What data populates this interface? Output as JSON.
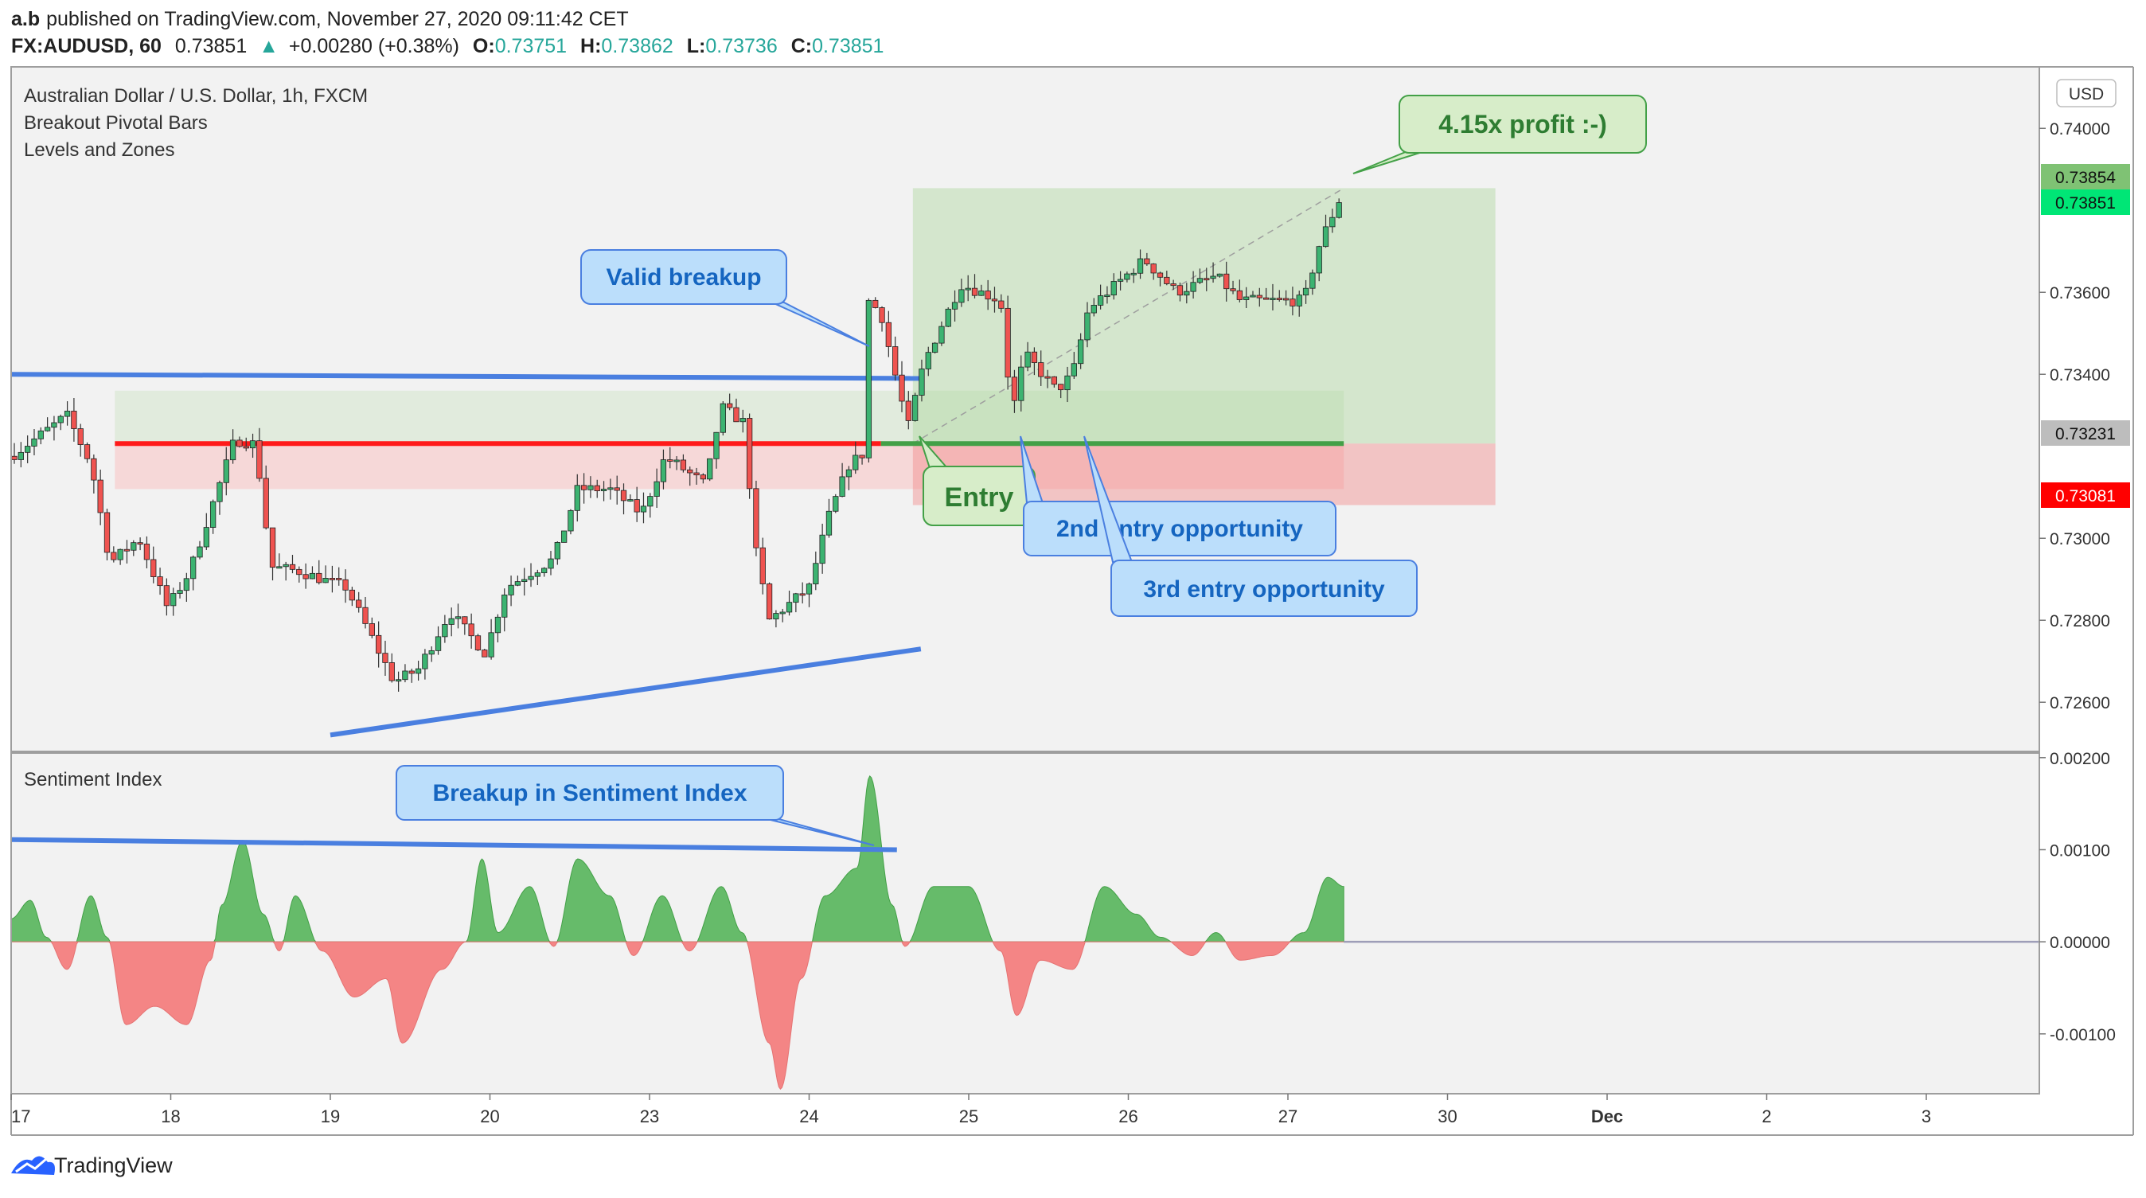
{
  "header": {
    "author": "a.b",
    "published": "published on TradingView.com, November 27, 2020 09:11:42 CET",
    "symbol": "FX:AUDUSD, 60",
    "last": "0.73851",
    "change": "+0.00280 (+0.38%)",
    "o_label": "O:",
    "o": "0.73751",
    "h_label": "H:",
    "h": "0.73862",
    "l_label": "L:",
    "l": "0.73736",
    "c_label": "C:",
    "c": "0.73851"
  },
  "legend": {
    "title": "Australian Dollar / U.S. Dollar, 1h, FXCM",
    "ind1": "Breakout Pivotal Bars",
    "ind2": "Levels and Zones",
    "sentiment": "Sentiment Index"
  },
  "currency": "USD",
  "brand": "TradingView",
  "annotations": {
    "valid_breakup": "Valid breakup",
    "profit": "4.15x profit :-)",
    "entry": "Entry",
    "entry2": "2nd entry opportunity",
    "entry3": "3rd entry opportunity",
    "sentiment_breakup": "Breakup in Sentiment Index"
  },
  "price_badges": {
    "target": "0.73854",
    "last": "0.73851",
    "entry": "0.73231",
    "stop": "0.73081"
  },
  "colors": {
    "up": "#26a69a",
    "up_body": "#3cb371",
    "down": "#ef5350",
    "trendline": "#4a7fe0",
    "level_red": "#ff1a1a",
    "level_green": "#43a047",
    "blue_callout": "#bbdefb",
    "green_callout": "#d7edc9",
    "sent_pos": "#66bb6a",
    "sent_neg": "#f48585"
  },
  "chart_data": [
    {
      "type": "candlestick",
      "title": "Australian Dollar / U.S. Dollar, 1h, FXCM",
      "x_tick_labels": [
        "17",
        "18",
        "19",
        "20",
        "23",
        "24",
        "25",
        "26",
        "27",
        "30",
        "Dec",
        "2",
        "3"
      ],
      "y_tick_labels": [
        "0.74000",
        "0.73600",
        "0.73400",
        "0.73000",
        "0.72800",
        "0.72600"
      ],
      "ylim": [
        0.7248,
        0.7415
      ],
      "close_path": [
        {
          "t": 0.0,
          "p": 0.732
        },
        {
          "t": 0.35,
          "p": 0.733
        },
        {
          "t": 0.5,
          "p": 0.7318
        },
        {
          "t": 0.62,
          "p": 0.7294
        },
        {
          "t": 0.8,
          "p": 0.73
        },
        {
          "t": 0.98,
          "p": 0.7283
        },
        {
          "t": 1.12,
          "p": 0.7292
        },
        {
          "t": 1.4,
          "p": 0.7324
        },
        {
          "t": 1.53,
          "p": 0.7323
        },
        {
          "t": 1.63,
          "p": 0.7293
        },
        {
          "t": 1.8,
          "p": 0.7292
        },
        {
          "t": 2.1,
          "p": 0.7288
        },
        {
          "t": 2.4,
          "p": 0.7265
        },
        {
          "t": 2.55,
          "p": 0.7268
        },
        {
          "t": 2.75,
          "p": 0.7282
        },
        {
          "t": 2.97,
          "p": 0.7272
        },
        {
          "t": 3.1,
          "p": 0.7288
        },
        {
          "t": 3.4,
          "p": 0.7295
        },
        {
          "t": 3.55,
          "p": 0.7312
        },
        {
          "t": 3.75,
          "p": 0.7312
        },
        {
          "t": 3.95,
          "p": 0.7306
        },
        {
          "t": 4.1,
          "p": 0.732
        },
        {
          "t": 4.35,
          "p": 0.7313
        },
        {
          "t": 4.45,
          "p": 0.7332
        },
        {
          "t": 4.6,
          "p": 0.7328
        },
        {
          "t": 4.65,
          "p": 0.73
        },
        {
          "t": 4.75,
          "p": 0.728
        },
        {
          "t": 5.0,
          "p": 0.7288
        },
        {
          "t": 5.12,
          "p": 0.7305
        },
        {
          "t": 5.25,
          "p": 0.7318
        },
        {
          "t": 5.35,
          "p": 0.7321
        },
        {
          "t": 5.37,
          "p": 0.7358
        },
        {
          "t": 5.45,
          "p": 0.7355
        },
        {
          "t": 5.55,
          "p": 0.7338
        },
        {
          "t": 5.62,
          "p": 0.7327
        },
        {
          "t": 5.72,
          "p": 0.7343
        },
        {
          "t": 5.95,
          "p": 0.7362
        },
        {
          "t": 6.2,
          "p": 0.7358
        },
        {
          "t": 6.27,
          "p": 0.733
        },
        {
          "t": 6.35,
          "p": 0.7345
        },
        {
          "t": 6.55,
          "p": 0.7336
        },
        {
          "t": 6.65,
          "p": 0.734
        },
        {
          "t": 6.75,
          "p": 0.7356
        },
        {
          "t": 7.1,
          "p": 0.7368
        },
        {
          "t": 7.3,
          "p": 0.736
        },
        {
          "t": 7.55,
          "p": 0.7364
        },
        {
          "t": 7.7,
          "p": 0.7358
        },
        {
          "t": 7.95,
          "p": 0.7358
        },
        {
          "t": 8.1,
          "p": 0.7358
        },
        {
          "t": 8.2,
          "p": 0.7372
        },
        {
          "t": 8.35,
          "p": 0.7385
        }
      ],
      "lines": [
        {
          "name": "upper-trendline",
          "points": [
            [
              0.0,
              0.734
            ],
            [
              5.7,
              0.7339
            ]
          ]
        },
        {
          "name": "lower-trendline",
          "points": [
            [
              2.0,
              0.7252
            ],
            [
              5.7,
              0.7273
            ]
          ]
        },
        {
          "name": "resistance-level",
          "from": 0.65,
          "to": 5.45,
          "price": 0.73231
        },
        {
          "name": "entry-level",
          "from": 5.45,
          "to": 8.35,
          "price": 0.73231
        }
      ],
      "zones": [
        {
          "name": "demand-zone",
          "from": 0.65,
          "to": 8.35,
          "top": 0.7336,
          "bottom": 0.73231
        },
        {
          "name": "supply-zone",
          "from": 0.65,
          "to": 8.35,
          "top": 0.73231,
          "bottom": 0.7312
        }
      ],
      "position": {
        "entry": 0.73231,
        "target": 0.73854,
        "stop": 0.73081,
        "from": 5.65,
        "to": 9.3
      }
    },
    {
      "type": "area",
      "title": "Sentiment Index",
      "y_tick_labels": [
        "0.00200",
        "0.00100",
        "0.00000",
        "-0.00100"
      ],
      "ylim": [
        -0.00165,
        0.00205
      ],
      "values": [
        {
          "t": 0.0,
          "v": 0.00025
        },
        {
          "t": 0.12,
          "v": 0.00045
        },
        {
          "t": 0.22,
          "v": 5e-05
        },
        {
          "t": 0.35,
          "v": -0.0003
        },
        {
          "t": 0.5,
          "v": 0.0005
        },
        {
          "t": 0.6,
          "v": 5e-05
        },
        {
          "t": 0.72,
          "v": -0.0009
        },
        {
          "t": 0.9,
          "v": -0.0007
        },
        {
          "t": 1.1,
          "v": -0.0009
        },
        {
          "t": 1.25,
          "v": -0.0002
        },
        {
          "t": 1.32,
          "v": 0.0004
        },
        {
          "t": 1.45,
          "v": 0.0011
        },
        {
          "t": 1.58,
          "v": 0.0003
        },
        {
          "t": 1.68,
          "v": -0.0001
        },
        {
          "t": 1.78,
          "v": 0.0005
        },
        {
          "t": 1.95,
          "v": -0.0001
        },
        {
          "t": 2.15,
          "v": -0.0006
        },
        {
          "t": 2.35,
          "v": -0.0004
        },
        {
          "t": 2.45,
          "v": -0.0011
        },
        {
          "t": 2.7,
          "v": -0.0003
        },
        {
          "t": 2.85,
          "v": 0.0
        },
        {
          "t": 2.95,
          "v": 0.0009
        },
        {
          "t": 3.05,
          "v": 0.0001
        },
        {
          "t": 3.25,
          "v": 0.0006
        },
        {
          "t": 3.4,
          "v": -5e-05
        },
        {
          "t": 3.55,
          "v": 0.0009
        },
        {
          "t": 3.75,
          "v": 0.0005
        },
        {
          "t": 3.9,
          "v": -0.00015
        },
        {
          "t": 4.08,
          "v": 0.0005
        },
        {
          "t": 4.25,
          "v": -0.0001
        },
        {
          "t": 4.45,
          "v": 0.0006
        },
        {
          "t": 4.58,
          "v": 0.0001
        },
        {
          "t": 4.75,
          "v": -0.0011
        },
        {
          "t": 4.82,
          "v": -0.0016
        },
        {
          "t": 4.95,
          "v": -0.0004
        },
        {
          "t": 5.1,
          "v": 0.0005
        },
        {
          "t": 5.3,
          "v": 0.0008
        },
        {
          "t": 5.38,
          "v": 0.0018
        },
        {
          "t": 5.52,
          "v": 0.0004
        },
        {
          "t": 5.6,
          "v": -5e-05
        },
        {
          "t": 5.78,
          "v": 0.0006
        },
        {
          "t": 6.0,
          "v": 0.0006
        },
        {
          "t": 6.2,
          "v": -0.0001
        },
        {
          "t": 6.3,
          "v": -0.0008
        },
        {
          "t": 6.45,
          "v": -0.0002
        },
        {
          "t": 6.65,
          "v": -0.0003
        },
        {
          "t": 6.85,
          "v": 0.0006
        },
        {
          "t": 7.05,
          "v": 0.0003
        },
        {
          "t": 7.2,
          "v": 5e-05
        },
        {
          "t": 7.4,
          "v": -0.00015
        },
        {
          "t": 7.55,
          "v": 0.0001
        },
        {
          "t": 7.7,
          "v": -0.0002
        },
        {
          "t": 7.9,
          "v": -0.00015
        },
        {
          "t": 8.1,
          "v": 0.0001
        },
        {
          "t": 8.25,
          "v": 0.0007
        },
        {
          "t": 8.35,
          "v": 0.0006
        }
      ]
    }
  ]
}
